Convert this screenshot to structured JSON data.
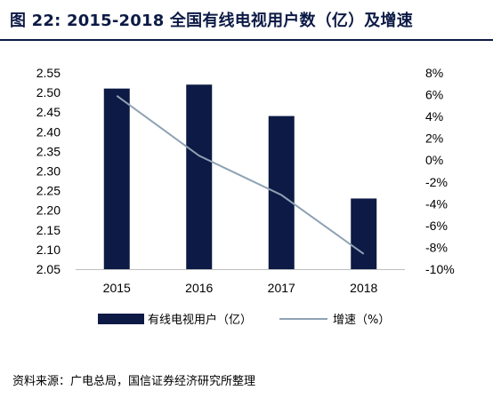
{
  "title": "图 22:   2015-2018 全国有线电视用户数（亿）及增速",
  "source": "资料来源：广电总局，国信证券经济研究所整理",
  "colors": {
    "bar": "#0c1a45",
    "line": "#8ea2b4",
    "title": "#0c1a45"
  },
  "chart_data": {
    "type": "bar",
    "categories": [
      "2015",
      "2016",
      "2017",
      "2018"
    ],
    "series": [
      {
        "name": "有线电视用户（亿）",
        "type": "bar",
        "axis": "left",
        "values": [
          2.51,
          2.52,
          2.44,
          2.23
        ]
      },
      {
        "name": "增速（%）",
        "type": "line",
        "axis": "right",
        "values": [
          5.9,
          0.4,
          -3.2,
          -8.6
        ]
      }
    ],
    "y_left": {
      "min": 2.05,
      "max": 2.55,
      "step": 0.05,
      "ticks": [
        "2.05",
        "2.10",
        "2.15",
        "2.20",
        "2.25",
        "2.30",
        "2.35",
        "2.40",
        "2.45",
        "2.50",
        "2.55"
      ]
    },
    "y_right": {
      "min": -10,
      "max": 8,
      "step": 2,
      "ticks": [
        "-10%",
        "-8%",
        "-6%",
        "-4%",
        "-2%",
        "0%",
        "2%",
        "4%",
        "6%",
        "8%"
      ]
    },
    "grid": false,
    "legend_position": "bottom"
  }
}
